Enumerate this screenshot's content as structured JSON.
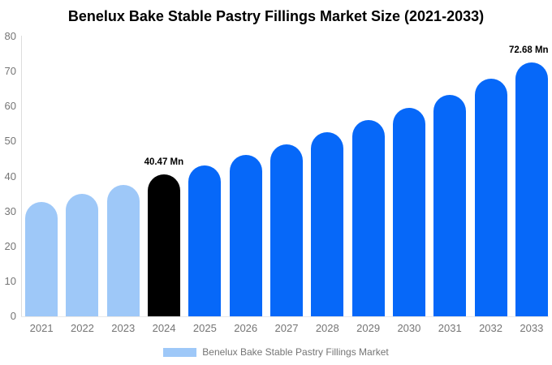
{
  "chart_data": {
    "type": "bar",
    "title": "Benelux Bake Stable Pastry Fillings Market Size (2021-2033)",
    "categories": [
      "2021",
      "2022",
      "2023",
      "2024",
      "2025",
      "2026",
      "2027",
      "2028",
      "2029",
      "2030",
      "2031",
      "2032",
      "2033"
    ],
    "values": [
      32.6,
      35.0,
      37.5,
      40.47,
      43.2,
      46.1,
      49.1,
      52.6,
      56.1,
      59.7,
      63.3,
      67.9,
      72.68
    ],
    "bar_colors": [
      "#9ec8f8",
      "#9ec8f8",
      "#9ec8f8",
      "#000000",
      "#0668f9",
      "#0668f9",
      "#0668f9",
      "#0668f9",
      "#0668f9",
      "#0668f9",
      "#0668f9",
      "#0668f9",
      "#0668f9"
    ],
    "annotations": [
      {
        "category": "2024",
        "text": "40.47 Mn"
      },
      {
        "category": "2033",
        "text": "72.68 Mn"
      }
    ],
    "xlabel": "",
    "ylabel": "",
    "ylim": [
      0,
      80
    ],
    "grid": false,
    "legend_position": "bottom"
  },
  "y_axis": {
    "min": 0,
    "max": 80,
    "ticks": [
      0,
      10,
      20,
      30,
      40,
      50,
      60,
      70,
      80
    ]
  },
  "legend": {
    "label": "Benelux Bake Stable Pastry Fillings Market",
    "swatch_color": "#9ec8f8"
  },
  "colors": {
    "historical_bar": "#9ec8f8",
    "highlight_bar": "#000000",
    "forecast_bar": "#0668f9",
    "axis_line": "#dddddd",
    "tick_text": "#757575",
    "title_text": "#000000"
  }
}
